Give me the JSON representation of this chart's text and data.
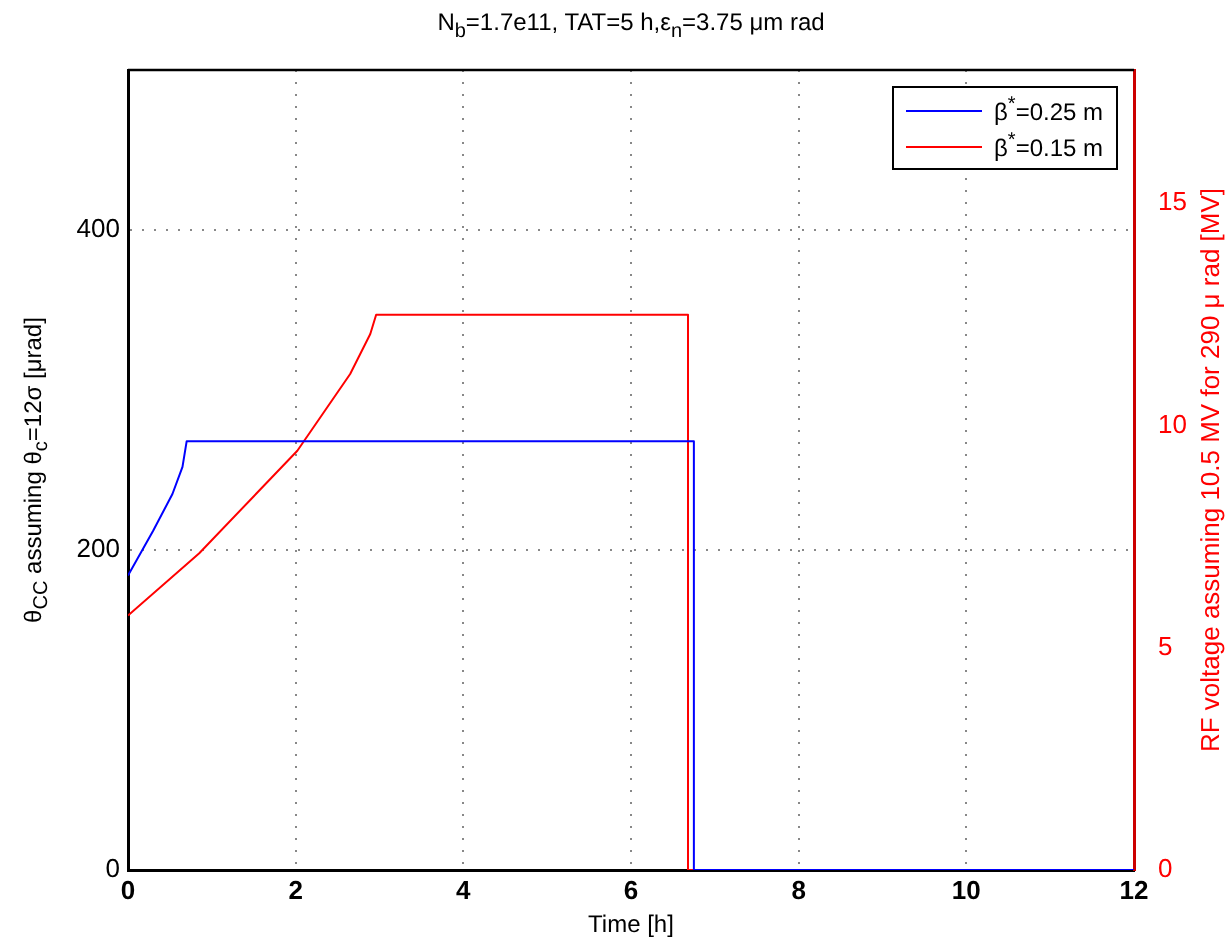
{
  "chart_data": {
    "type": "line",
    "title": "N$_{b}$=1.7e11, TAT=5 h,ε$_{n}$=3.75 μm rad",
    "xlabel": "Time [h]",
    "ylabel": "θ$_{CC}$ assuming θ$_{c}$=12σ [μrad]",
    "y2label": "RF voltage assuming 10.5 MV for 290 μ rad [MV]",
    "series": [
      {
        "name": "β$^{*}$=0.25 m",
        "color": "#0000ff",
        "x": [
          0,
          0.3,
          0.53,
          0.65,
          0.7,
          6.75,
          6.75,
          12
        ],
        "values": [
          184,
          212,
          235,
          252,
          268,
          268,
          0,
          0
        ]
      },
      {
        "name": "β$^{*}$=0.15 m",
        "color": "#ff0000",
        "x": [
          0,
          0.85,
          2.02,
          2.65,
          2.89,
          2.96,
          6.68,
          6.68,
          12
        ],
        "values": [
          159,
          198,
          262,
          310,
          335,
          347,
          347,
          0,
          0
        ]
      }
    ],
    "xlim": [
      0,
      12
    ],
    "xticks": [
      0,
      2,
      4,
      6,
      8,
      10,
      12
    ],
    "ylim": [
      0,
      500
    ],
    "yticks": [
      0,
      200,
      400
    ],
    "y2lim": [
      0,
      18
    ],
    "y2ticks": [
      0,
      5,
      10,
      15
    ],
    "grid": true,
    "legend": "top right",
    "marker": "none",
    "line_style": "solid"
  }
}
